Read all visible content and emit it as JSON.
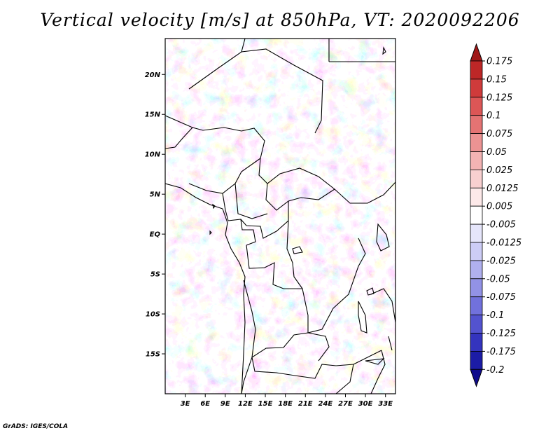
{
  "title": "Vertical velocity [m/s] at 850hPa, VT: 2020092206",
  "credit": "GrADS: IGES/COLA",
  "lat_labels": [
    "20N",
    "15N",
    "10N",
    "5N",
    "EQ",
    "5S",
    "10S",
    "15S"
  ],
  "lon_labels": [
    "3E",
    "6E",
    "9E",
    "12E",
    "15E",
    "18E",
    "21E",
    "24E",
    "27E",
    "30E",
    "33E"
  ],
  "colorbar": {
    "labels": [
      "0.175",
      "0.15",
      "0.125",
      "0.1",
      "0.075",
      "0.05",
      "0.025",
      "0.0125",
      "0.005",
      "-0.005",
      "-0.0125",
      "-0.025",
      "-0.05",
      "-0.075",
      "-0.1",
      "-0.125",
      "-0.175",
      "-0.2"
    ],
    "colors": [
      "#a01818",
      "#bd2727",
      "#cf3b3b",
      "#dc5656",
      "#e47373",
      "#ec9393",
      "#f3b3b3",
      "#f8d0d0",
      "#fde9e9",
      "#ffffff",
      "#e6e6fb",
      "#cdcdf6",
      "#b0b0ef",
      "#9292e6",
      "#7171dc",
      "#5353cf",
      "#3434be",
      "#1c1ca6",
      "#100c8c"
    ]
  },
  "chart_data": {
    "type": "heatmap",
    "variable": "Vertical velocity",
    "units": "m/s",
    "level": "850hPa",
    "valid_time": "2020092206",
    "lat_range": [
      -20,
      24.5
    ],
    "lon_range": [
      0,
      34.5
    ],
    "ticks_lat": [
      20,
      15,
      10,
      5,
      0,
      -5,
      -10,
      -15
    ],
    "ticks_lon": [
      3,
      6,
      9,
      12,
      15,
      18,
      21,
      24,
      27,
      30,
      33
    ],
    "levels": [
      0.175,
      0.15,
      0.125,
      0.1,
      0.075,
      0.05,
      0.025,
      0.0125,
      0.005,
      -0.005,
      -0.0125,
      -0.025,
      -0.05,
      -0.075,
      -0.1,
      -0.125,
      -0.175,
      -0.2
    ]
  }
}
